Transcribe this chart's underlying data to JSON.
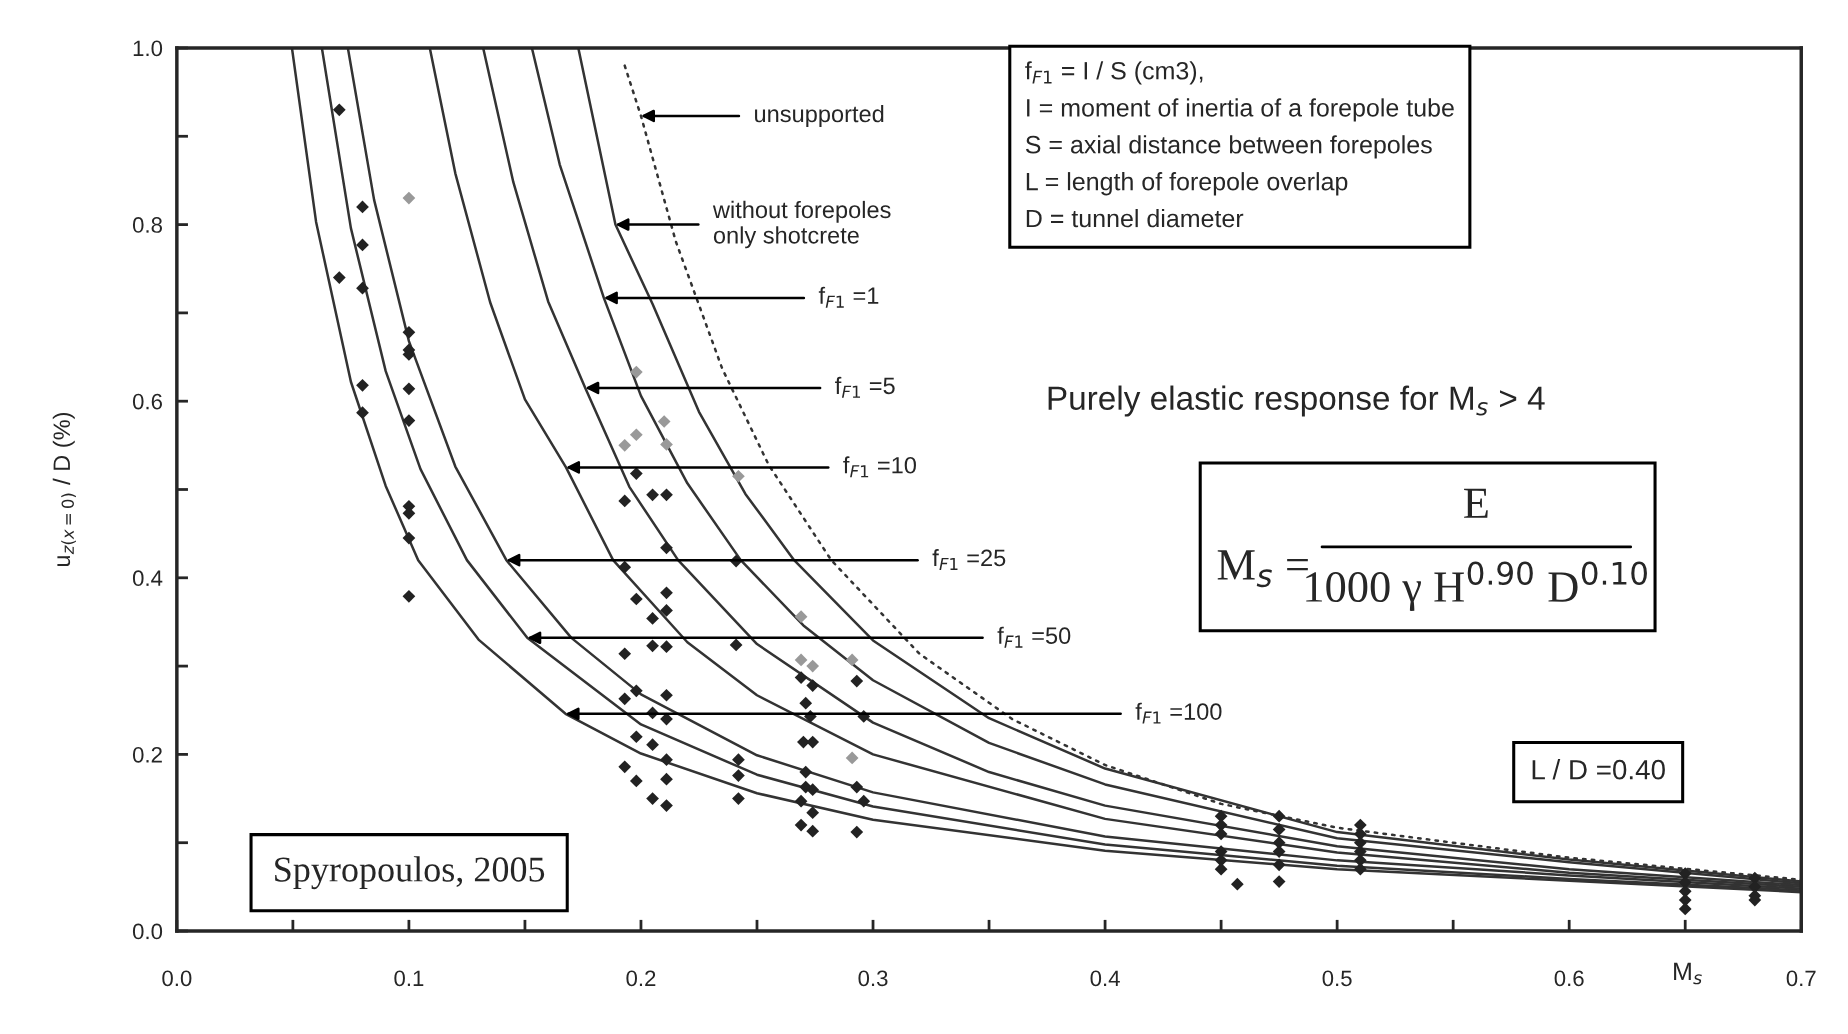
{
  "chart_data": {
    "type": "scatter",
    "xlabel": "M$_{s}$",
    "ylabel": "u$_{z(x=0)}$ / D (%)",
    "xlim": [
      0.0,
      0.7
    ],
    "ylim": [
      0.0,
      1.0
    ],
    "xticks": [
      {
        "value": 0.0,
        "label": "0.0"
      },
      {
        "value": 0.05,
        "label": null
      },
      0.1,
      {
        "value": 0.15,
        "label": null
      },
      0.2,
      {
        "value": 0.25,
        "label": null
      },
      0.3,
      {
        "value": 0.35,
        "label": null
      },
      0.4,
      {
        "value": 0.45,
        "label": null
      },
      0.5,
      {
        "value": 0.55,
        "label": null
      },
      0.6,
      {
        "value": 0.65,
        "label": null
      },
      0.7
    ],
    "yticks": [
      {
        "value": 0.0,
        "label": "0.0"
      },
      {
        "value": 0.1,
        "label": null
      },
      0.2,
      {
        "value": 0.3,
        "label": null
      },
      0.4,
      {
        "value": 0.5,
        "label": null
      },
      0.6,
      {
        "value": 0.7,
        "label": null
      },
      0.8,
      {
        "value": 0.9,
        "label": null
      },
      {
        "value": 1.0,
        "label": "1.0"
      }
    ],
    "grid": false,
    "legend": false,
    "marker": "diamond",
    "series": [
      {
        "type": "line",
        "line_style": "solid",
        "marker": "none",
        "color": "#333333",
        "x": [
          0.0496,
          0.06,
          0.075,
          0.09,
          0.104,
          0.13,
          0.1675,
          0.2,
          0.25,
          0.3,
          0.4,
          0.5,
          0.6,
          0.7
        ],
        "values": [
          1.0,
          0.803,
          0.622,
          0.504,
          0.42,
          0.33,
          0.246,
          0.201,
          0.156,
          0.126,
          0.091,
          0.07,
          0.057,
          0.044
        ]
      },
      {
        "type": "line",
        "line_style": "solid",
        "marker": "none",
        "color": "#333333",
        "x": [
          0.0625,
          0.075,
          0.09,
          0.105,
          0.125,
          0.151,
          0.2,
          0.25,
          0.3,
          0.4,
          0.5,
          0.6,
          0.7
        ],
        "values": [
          1.0,
          0.796,
          0.634,
          0.523,
          0.42,
          0.332,
          0.234,
          0.177,
          0.141,
          0.098,
          0.074,
          0.059,
          0.046
        ]
      },
      {
        "type": "line",
        "line_style": "solid",
        "marker": "none",
        "color": "#333333",
        "x": [
          0.0737,
          0.085,
          0.1,
          0.12,
          0.142,
          0.17,
          0.2,
          0.25,
          0.3,
          0.4,
          0.5,
          0.6,
          0.7
        ],
        "values": [
          1.0,
          0.828,
          0.668,
          0.526,
          0.42,
          0.332,
          0.268,
          0.199,
          0.157,
          0.107,
          0.08,
          0.063,
          0.048
        ]
      },
      {
        "type": "line",
        "line_style": "solid",
        "marker": "none",
        "color": "#333333",
        "x": [
          0.109,
          0.12,
          0.135,
          0.15,
          0.1677,
          0.188,
          0.22,
          0.25,
          0.3,
          0.4,
          0.5,
          0.6,
          0.7
        ],
        "values": [
          1.0,
          0.858,
          0.712,
          0.602,
          0.525,
          0.42,
          0.327,
          0.267,
          0.2,
          0.127,
          0.089,
          0.066,
          0.05
        ]
      },
      {
        "type": "line",
        "line_style": "solid",
        "marker": "none",
        "color": "#333333",
        "x": [
          0.132,
          0.145,
          0.16,
          0.176,
          0.195,
          0.216,
          0.25,
          0.3,
          0.35,
          0.4,
          0.5,
          0.6,
          0.7
        ],
        "values": [
          1.0,
          0.848,
          0.713,
          0.615,
          0.503,
          0.42,
          0.325,
          0.236,
          0.18,
          0.142,
          0.096,
          0.07,
          0.052
        ]
      },
      {
        "type": "line",
        "line_style": "solid",
        "marker": "none",
        "color": "#333333",
        "x": [
          0.153,
          0.165,
          0.184,
          0.2,
          0.22,
          0.243,
          0.27,
          0.3,
          0.35,
          0.4,
          0.5,
          0.6,
          0.7
        ],
        "values": [
          1.0,
          0.868,
          0.717,
          0.606,
          0.507,
          0.42,
          0.346,
          0.284,
          0.213,
          0.166,
          0.105,
          0.078,
          0.054
        ]
      },
      {
        "type": "line",
        "line_style": "solid",
        "marker": "none",
        "color": "#333333",
        "x": [
          0.173,
          0.189,
          0.205,
          0.225,
          0.245,
          0.266,
          0.3,
          0.35,
          0.4,
          0.5,
          0.6,
          0.7
        ],
        "values": [
          1.0,
          0.8,
          0.71,
          0.588,
          0.495,
          0.42,
          0.329,
          0.241,
          0.184,
          0.112,
          0.081,
          0.056
        ]
      },
      {
        "type": "line",
        "line_style": "dotted",
        "marker": "none",
        "color": "#333333",
        "x": [
          0.193,
          0.2,
          0.215,
          0.235,
          0.255,
          0.282,
          0.32,
          0.36,
          0.4,
          0.45,
          0.5,
          0.6,
          0.7
        ],
        "values": [
          0.98,
          0.923,
          0.781,
          0.637,
          0.528,
          0.42,
          0.314,
          0.24,
          0.188,
          0.144,
          0.117,
          0.083,
          0.058
        ]
      },
      {
        "color": "#999999",
        "x": [
          0.1,
          0.198,
          0.193,
          0.211,
          0.21,
          0.198,
          0.242,
          0.269,
          0.269,
          0.274,
          0.291,
          0.291
        ],
        "values": [
          0.83,
          0.562,
          0.55,
          0.551,
          0.577,
          0.633,
          0.515,
          0.356,
          0.307,
          0.3,
          0.307,
          0.196
        ]
      },
      {
        "color": "#222222",
        "x": [
          0.07,
          0.07,
          0.08,
          0.08,
          0.08,
          0.08,
          0.08,
          0.1,
          0.1,
          0.1,
          0.1,
          0.1,
          0.1,
          0.1,
          0.1,
          0.1,
          0.193,
          0.198,
          0.205,
          0.211,
          0.211,
          0.193,
          0.198,
          0.211,
          0.205,
          0.211,
          0.205,
          0.211,
          0.193,
          0.198,
          0.193,
          0.211,
          0.205,
          0.211,
          0.198,
          0.205,
          0.211,
          0.211,
          0.193,
          0.198,
          0.205,
          0.211,
          0.241,
          0.241,
          0.242,
          0.242,
          0.242,
          0.269,
          0.274,
          0.271,
          0.273,
          0.27,
          0.274,
          0.271,
          0.271,
          0.274,
          0.269,
          0.274,
          0.269,
          0.274,
          0.293,
          0.296,
          0.293,
          0.296,
          0.293,
          0.45,
          0.45,
          0.45,
          0.45,
          0.45,
          0.45,
          0.457,
          0.475,
          0.475,
          0.475,
          0.475,
          0.475,
          0.475,
          0.51,
          0.51,
          0.51,
          0.51,
          0.51,
          0.51,
          0.65,
          0.65,
          0.65,
          0.65,
          0.65,
          0.68,
          0.68,
          0.68,
          0.68
        ],
        "values": [
          0.93,
          0.74,
          0.82,
          0.777,
          0.728,
          0.618,
          0.587,
          0.678,
          0.658,
          0.653,
          0.614,
          0.578,
          0.481,
          0.473,
          0.445,
          0.379,
          0.487,
          0.518,
          0.494,
          0.494,
          0.434,
          0.412,
          0.376,
          0.383,
          0.354,
          0.363,
          0.323,
          0.322,
          0.314,
          0.272,
          0.263,
          0.267,
          0.247,
          0.24,
          0.22,
          0.211,
          0.194,
          0.172,
          0.186,
          0.17,
          0.15,
          0.142,
          0.419,
          0.324,
          0.194,
          0.176,
          0.15,
          0.287,
          0.278,
          0.258,
          0.243,
          0.214,
          0.214,
          0.18,
          0.163,
          0.16,
          0.147,
          0.134,
          0.12,
          0.113,
          0.283,
          0.243,
          0.163,
          0.147,
          0.112,
          0.13,
          0.12,
          0.11,
          0.09,
          0.08,
          0.07,
          0.053,
          0.13,
          0.115,
          0.1,
          0.09,
          0.075,
          0.056,
          0.12,
          0.11,
          0.1,
          0.09,
          0.08,
          0.07,
          0.065,
          0.055,
          0.045,
          0.035,
          0.025,
          0.06,
          0.05,
          0.04,
          0.035
        ]
      }
    ],
    "annotations": [
      {
        "text": "unsupported",
        "x": 0.2,
        "y": 0.923
      },
      {
        "text": "without forepoles\nonly shotcrete",
        "x": 0.189,
        "y": 0.8
      },
      {
        "text": "f$_{F1}$ =1",
        "x": 0.184,
        "y": 0.717
      },
      {
        "text": "f$_{F1}$ =5",
        "x": 0.176,
        "y": 0.615
      },
      {
        "text": "f$_{F1}$ =10",
        "x": 0.1677,
        "y": 0.525
      },
      {
        "text": "f$_{F1}$ =25",
        "x": 0.142,
        "y": 0.42
      },
      {
        "text": "f$_{F1}$ =50",
        "x": 0.151,
        "y": 0.332
      },
      {
        "text": "f$_{F1}$ =100",
        "x": 0.1675,
        "y": 0.246
      },
      "f$_{F1}$ = I / S (cm3),\nI = moment of inertia of a forepole tube\nS = axial distance between forepoles\nL = length of forepole overlap\nD = tunnel diameter",
      "Purely elastic response for M$_{s}$ > 4",
      "M$_{s}$ =",
      "E",
      "1000 γ H$^{0.90}$ D$^{0.10}$",
      "L / D =0.40",
      "Spyropoulos, 2005"
    ]
  }
}
